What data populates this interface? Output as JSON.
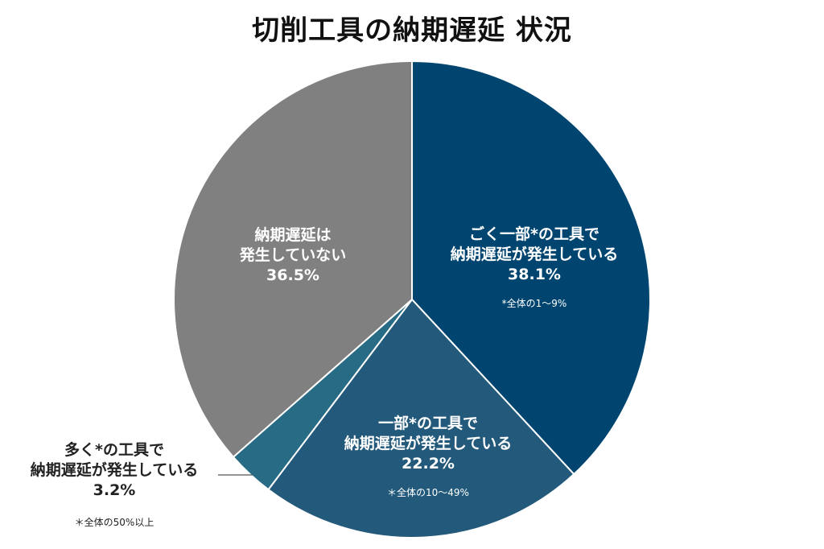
{
  "title": "切削工具の納期遅延 状況",
  "colors": {
    "slice_1": "#004570",
    "slice_2": "#235a7b",
    "slice_3": "#276c84",
    "slice_4": "#808080",
    "leader": "#555555"
  },
  "chart_data": {
    "type": "pie",
    "title": "切削工具の納期遅延 状況",
    "unit": "%",
    "start": "12 o'clock",
    "direction": "clockwise",
    "slices": [
      {
        "label_lines": [
          "ごく一部*の工具で",
          "納期遅延が発生している"
        ],
        "value": 38.1,
        "value_label": "38.1%",
        "note": "*全体の1～9%"
      },
      {
        "label_lines": [
          "一部*の工具で",
          "納期遅延が発生している"
        ],
        "value": 22.2,
        "value_label": "22.2%",
        "note": "＊全体の10～49%"
      },
      {
        "label_lines": [
          "多く*の工具で",
          "納期遅延が発生している"
        ],
        "value": 3.2,
        "value_label": "3.2%",
        "note": "＊全体の50%以上"
      },
      {
        "label_lines": [
          "納期遅延は",
          "発生していない"
        ],
        "value": 36.5,
        "value_label": "36.5%",
        "note": ""
      }
    ]
  }
}
